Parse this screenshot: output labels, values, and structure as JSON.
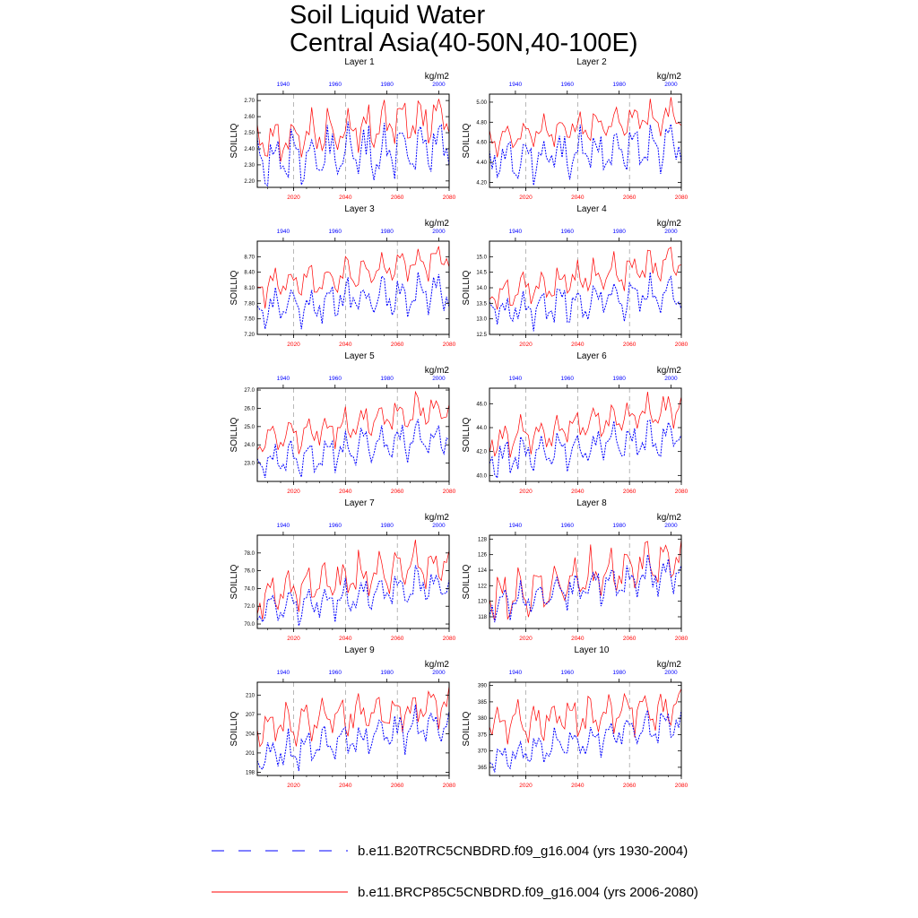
{
  "title": {
    "line1": "Soil Liquid Water",
    "line2": "Central Asia(40-50N,40-100E)"
  },
  "colors": {
    "hist": "#0000ff",
    "future": "#ff0000",
    "axis": "#000000",
    "grid": "#888888"
  },
  "legend": {
    "hist_label": "b.e11.B20TRC5CNBDRD.f09_g16.004 (yrs 1930-2004)",
    "future_label": "b.e11.BRCP85C5CNBDRD.f09_g16.004 (yrs 2006-2080)"
  },
  "chart_data": [
    {
      "type": "line",
      "title": "Layer 1",
      "units": "kg/m2",
      "ylabel": "SOILLIQ",
      "ylim": [
        2.16,
        2.74
      ],
      "yticks": [
        "2.20",
        "2.30",
        "2.40",
        "2.50",
        "2.60",
        "2.70"
      ],
      "x_bottom": {
        "range": [
          2006,
          2080
        ],
        "ticks": [
          "2020",
          "2040",
          "2060",
          "2080"
        ],
        "color": "red"
      },
      "x_top": {
        "range": [
          1930,
          2004
        ],
        "ticks": [
          "1940",
          "1960",
          "1980",
          "2000"
        ],
        "color": "blue"
      },
      "series": [
        {
          "name": "hist",
          "years": [
            1930,
            2004
          ],
          "base": 2.38,
          "trend": 0.06,
          "amp": 0.15,
          "min": 2.17,
          "max": 2.57
        },
        {
          "name": "future",
          "years": [
            2006,
            2080
          ],
          "base": 2.45,
          "trend": 0.14,
          "amp": 0.12,
          "min": 2.32,
          "max": 2.71
        }
      ]
    },
    {
      "type": "line",
      "title": "Layer 2",
      "units": "kg/m2",
      "ylabel": "SOILLIQ",
      "ylim": [
        4.15,
        5.08
      ],
      "yticks": [
        "4.20",
        "4.40",
        "4.60",
        "4.80",
        "5.00"
      ],
      "x_bottom": {
        "range": [
          2006,
          2080
        ],
        "ticks": [
          "2020",
          "2040",
          "2060",
          "2080"
        ],
        "color": "red"
      },
      "x_top": {
        "range": [
          1930,
          2004
        ],
        "ticks": [
          "1940",
          "1960",
          "1980",
          "2000"
        ],
        "color": "blue"
      },
      "series": [
        {
          "name": "hist",
          "years": [
            1930,
            2004
          ],
          "base": 4.5,
          "trend": 0.15,
          "amp": 0.2,
          "min": 4.17,
          "max": 4.78
        },
        {
          "name": "future",
          "years": [
            2006,
            2080
          ],
          "base": 4.62,
          "trend": 0.25,
          "amp": 0.18,
          "min": 4.45,
          "max": 5.05
        }
      ]
    },
    {
      "type": "line",
      "title": "Layer 3",
      "units": "kg/m2",
      "ylabel": "SOILLIQ",
      "ylim": [
        7.2,
        9.0
      ],
      "yticks": [
        "7.20",
        "7.50",
        "7.80",
        "8.10",
        "8.40",
        "8.70"
      ],
      "x_bottom": {
        "range": [
          2006,
          2080
        ],
        "ticks": [
          "2020",
          "2040",
          "2060",
          "2080"
        ],
        "color": "red"
      },
      "x_top": {
        "range": [
          1930,
          2004
        ],
        "ticks": [
          "1940",
          "1960",
          "1980",
          "2000"
        ],
        "color": "blue"
      },
      "series": [
        {
          "name": "hist",
          "years": [
            1930,
            2004
          ],
          "base": 7.75,
          "trend": 0.3,
          "amp": 0.35,
          "min": 7.3,
          "max": 8.4
        },
        {
          "name": "future",
          "years": [
            2006,
            2080
          ],
          "base": 8.0,
          "trend": 0.5,
          "amp": 0.3,
          "min": 7.7,
          "max": 8.9
        }
      ]
    },
    {
      "type": "line",
      "title": "Layer 4",
      "units": "kg/m2",
      "ylabel": "SOILLIQ",
      "ylim": [
        12.5,
        15.5
      ],
      "yticks": [
        "12.5",
        "13.0",
        "13.5",
        "14.0",
        "14.5",
        "15.0"
      ],
      "x_bottom": {
        "range": [
          2006,
          2080
        ],
        "ticks": [
          "2020",
          "2040",
          "2060",
          "2080"
        ],
        "color": "red"
      },
      "x_top": {
        "range": [
          1930,
          2004
        ],
        "ticks": [
          "1940",
          "1960",
          "1980",
          "2000"
        ],
        "color": "blue"
      },
      "series": [
        {
          "name": "hist",
          "years": [
            1930,
            2004
          ],
          "base": 13.5,
          "trend": 0.5,
          "amp": 0.55,
          "min": 12.6,
          "max": 14.5
        },
        {
          "name": "future",
          "years": [
            2006,
            2080
          ],
          "base": 13.8,
          "trend": 0.9,
          "amp": 0.5,
          "min": 13.3,
          "max": 15.3
        }
      ]
    },
    {
      "type": "line",
      "title": "Layer 5",
      "units": "kg/m2",
      "ylabel": "SOILLIQ",
      "ylim": [
        22.0,
        27.1
      ],
      "yticks": [
        "23.0",
        "24.0",
        "25.0",
        "26.0",
        "27.0"
      ],
      "x_bottom": {
        "range": [
          2006,
          2080
        ],
        "ticks": [
          "2020",
          "2040",
          "2060",
          "2080"
        ],
        "color": "red"
      },
      "x_top": {
        "range": [
          1930,
          2004
        ],
        "ticks": [
          "1940",
          "1960",
          "1980",
          "2000"
        ],
        "color": "blue"
      },
      "series": [
        {
          "name": "hist",
          "years": [
            1930,
            2004
          ],
          "base": 23.6,
          "trend": 1.0,
          "amp": 0.9,
          "min": 22.2,
          "max": 25.4
        },
        {
          "name": "future",
          "years": [
            2006,
            2080
          ],
          "base": 24.3,
          "trend": 1.5,
          "amp": 0.9,
          "min": 23.5,
          "max": 26.9
        }
      ]
    },
    {
      "type": "line",
      "title": "Layer 6",
      "units": "kg/m2",
      "ylabel": "SOILLIQ",
      "ylim": [
        39.5,
        47.3
      ],
      "yticks": [
        "40.0",
        "42.0",
        "44.0",
        "46.0"
      ],
      "x_bottom": {
        "range": [
          2006,
          2080
        ],
        "ticks": [
          "2020",
          "2040",
          "2060",
          "2080"
        ],
        "color": "red"
      },
      "x_top": {
        "range": [
          1930,
          2004
        ],
        "ticks": [
          "1940",
          "1960",
          "1980",
          "2000"
        ],
        "color": "blue"
      },
      "series": [
        {
          "name": "hist",
          "years": [
            1930,
            2004
          ],
          "base": 41.8,
          "trend": 1.6,
          "amp": 1.3,
          "min": 39.8,
          "max": 44.6
        },
        {
          "name": "future",
          "years": [
            2006,
            2080
          ],
          "base": 42.9,
          "trend": 2.3,
          "amp": 1.3,
          "min": 41.5,
          "max": 47.0
        }
      ]
    },
    {
      "type": "line",
      "title": "Layer 7",
      "units": "kg/m2",
      "ylabel": "SOILLIQ",
      "ylim": [
        69.5,
        80.0
      ],
      "yticks": [
        "70.0",
        "72.0",
        "74.0",
        "76.0",
        "78.0"
      ],
      "x_bottom": {
        "range": [
          2006,
          2080
        ],
        "ticks": [
          "2020",
          "2040",
          "2060",
          "2080"
        ],
        "color": "red"
      },
      "x_top": {
        "range": [
          1930,
          2004
        ],
        "ticks": [
          "1940",
          "1960",
          "1980",
          "2000"
        ],
        "color": "blue"
      },
      "series": [
        {
          "name": "hist",
          "years": [
            1930,
            2004
          ],
          "base": 72.3,
          "trend": 2.5,
          "amp": 1.9,
          "min": 69.8,
          "max": 76.6
        },
        {
          "name": "future",
          "years": [
            2006,
            2080
          ],
          "base": 74.0,
          "trend": 3.0,
          "amp": 1.9,
          "min": 70.5,
          "max": 79.5
        }
      ]
    },
    {
      "type": "line",
      "title": "Layer 8",
      "units": "kg/m2",
      "ylabel": "SOILLIQ",
      "ylim": [
        116.5,
        128.5
      ],
      "yticks": [
        "118",
        "120",
        "122",
        "124",
        "126",
        "128"
      ],
      "x_bottom": {
        "range": [
          2006,
          2080
        ],
        "ticks": [
          "2020",
          "2040",
          "2060",
          "2080"
        ],
        "color": "red"
      },
      "x_top": {
        "range": [
          1930,
          2004
        ],
        "ticks": [
          "1940",
          "1960",
          "1980",
          "2000"
        ],
        "color": "blue"
      },
      "series": [
        {
          "name": "hist",
          "years": [
            1930,
            2004
          ],
          "base": 120.0,
          "trend": 3.5,
          "amp": 2.2,
          "min": 117.3,
          "max": 126.0
        },
        {
          "name": "future",
          "years": [
            2006,
            2080
          ],
          "base": 122.0,
          "trend": 3.0,
          "amp": 2.2,
          "min": 117.5,
          "max": 128.0
        }
      ]
    },
    {
      "type": "line",
      "title": "Layer 9",
      "units": "kg/m2",
      "ylabel": "SOILLIQ",
      "ylim": [
        197.5,
        212.0
      ],
      "yticks": [
        "198",
        "201",
        "204",
        "207",
        "210"
      ],
      "x_bottom": {
        "range": [
          2006,
          2080
        ],
        "ticks": [
          "2020",
          "2040",
          "2060",
          "2080"
        ],
        "color": "red"
      },
      "x_top": {
        "range": [
          1930,
          2004
        ],
        "ticks": [
          "1940",
          "1960",
          "1980",
          "2000"
        ],
        "color": "blue"
      },
      "series": [
        {
          "name": "hist",
          "years": [
            1930,
            2004
          ],
          "base": 201.0,
          "trend": 4.0,
          "amp": 2.4,
          "min": 198.2,
          "max": 208.5
        },
        {
          "name": "future",
          "years": [
            2006,
            2080
          ],
          "base": 205.0,
          "trend": 2.5,
          "amp": 2.4,
          "min": 202.0,
          "max": 211.5
        }
      ]
    },
    {
      "type": "line",
      "title": "Layer 10",
      "units": "kg/m2",
      "ylabel": "SOILLIQ",
      "ylim": [
        362.5,
        391.0
      ],
      "yticks": [
        "365",
        "370",
        "375",
        "380",
        "385",
        "390"
      ],
      "x_bottom": {
        "range": [
          2006,
          2080
        ],
        "ticks": [
          "2020",
          "2040",
          "2060",
          "2080"
        ],
        "color": "red"
      },
      "x_top": {
        "range": [
          1930,
          2004
        ],
        "ticks": [
          "1940",
          "1960",
          "1980",
          "2000"
        ],
        "color": "blue"
      },
      "series": [
        {
          "name": "hist",
          "years": [
            1930,
            2004
          ],
          "base": 369.0,
          "trend": 9.0,
          "amp": 4.5,
          "min": 363.5,
          "max": 382.5
        },
        {
          "name": "future",
          "years": [
            2006,
            2080
          ],
          "base": 377.0,
          "trend": 3.0,
          "amp": 4.2,
          "min": 372.0,
          "max": 389.0
        }
      ]
    }
  ]
}
